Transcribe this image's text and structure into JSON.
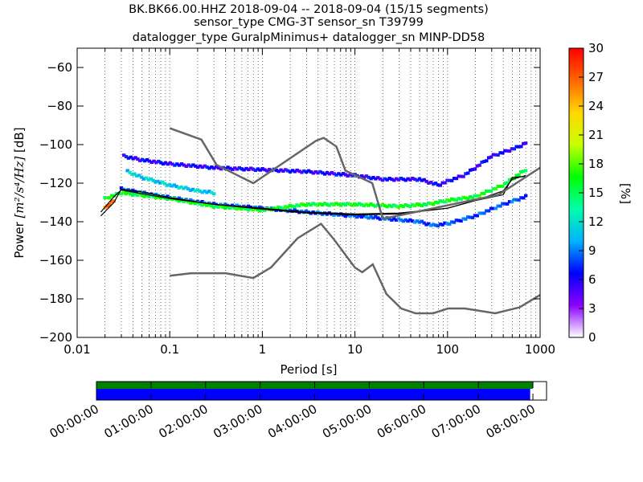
{
  "chart_data": {
    "type": "heatmap",
    "title_lines": [
      "BK.BK66.00.HHZ   2018-09-04 -- 2018-09-04  (15/15 segments)",
      "sensor_type CMG-3T sensor_sn T39799",
      "datalogger_type GuralpMinimus+ datalogger_sn MINP-DD58"
    ],
    "xlabel": "Period [s]",
    "ylabel_prefix": "Power ",
    "ylabel_math": "[m²/s⁴/Hz]",
    "ylabel_suffix": " [dB]",
    "x_scale": "log",
    "xlim": [
      0.01,
      1000
    ],
    "ylim": [
      -200,
      -50
    ],
    "x_ticks": [
      {
        "value": 0.01,
        "label": "0.01"
      },
      {
        "value": 0.1,
        "label": "0.1"
      },
      {
        "value": 1,
        "label": "1"
      },
      {
        "value": 10,
        "label": "10"
      },
      {
        "value": 100,
        "label": "100"
      },
      {
        "value": 1000,
        "label": "1000"
      }
    ],
    "y_ticks": [
      {
        "value": -60,
        "label": "−60"
      },
      {
        "value": -80,
        "label": "−80"
      },
      {
        "value": -100,
        "label": "−100"
      },
      {
        "value": -120,
        "label": "−120"
      },
      {
        "value": -140,
        "label": "−140"
      },
      {
        "value": -160,
        "label": "−160"
      },
      {
        "value": -180,
        "label": "−180"
      },
      {
        "value": -200,
        "label": "−200"
      }
    ],
    "grid": "dotted, period axis",
    "noise_model_high": [
      [
        0.1,
        -91.5
      ],
      [
        0.22,
        -97.4
      ],
      [
        0.32,
        -110.5
      ],
      [
        0.8,
        -120
      ],
      [
        3.8,
        -98
      ],
      [
        4.6,
        -96.5
      ],
      [
        6.3,
        -101
      ],
      [
        7.9,
        -113.5
      ],
      [
        15.4,
        -120
      ],
      [
        20,
        -138.5
      ],
      [
        354.8,
        -126
      ],
      [
        1000,
        -112
      ]
    ],
    "noise_model_low": [
      [
        0.1,
        -168
      ],
      [
        0.17,
        -166.7
      ],
      [
        0.4,
        -166.7
      ],
      [
        0.8,
        -169.2
      ],
      [
        1.24,
        -163.7
      ],
      [
        2.4,
        -148.6
      ],
      [
        4.3,
        -141.1
      ],
      [
        5.9,
        -149
      ],
      [
        10,
        -163.8
      ],
      [
        12,
        -166.2
      ],
      [
        15.6,
        -162.1
      ],
      [
        21.9,
        -177.5
      ],
      [
        31.6,
        -185
      ],
      [
        45,
        -187.5
      ],
      [
        70,
        -187.5
      ],
      [
        101,
        -185
      ],
      [
        154,
        -185
      ],
      [
        328,
        -187.5
      ],
      [
        600,
        -184.4
      ],
      [
        1000,
        -178
      ]
    ],
    "mode_curve": [
      [
        0.018,
        -135
      ],
      [
        0.025,
        -127
      ],
      [
        0.03,
        -123.5
      ],
      [
        0.05,
        -125.5
      ],
      [
        0.1,
        -128
      ],
      [
        0.3,
        -131
      ],
      [
        1,
        -133.5
      ],
      [
        3,
        -135.5
      ],
      [
        10,
        -136.5
      ],
      [
        30,
        -136
      ],
      [
        100,
        -133
      ],
      [
        200,
        -129
      ],
      [
        400,
        -126
      ],
      [
        500,
        -117
      ],
      [
        700,
        -116.5
      ]
    ],
    "mean_curve": [
      [
        0.018,
        -137
      ],
      [
        0.025,
        -130
      ],
      [
        0.03,
        -123
      ],
      [
        0.05,
        -124.5
      ],
      [
        0.1,
        -127.5
      ],
      [
        0.3,
        -131
      ],
      [
        1,
        -133
      ],
      [
        3,
        -135
      ],
      [
        10,
        -136
      ],
      [
        30,
        -135.5
      ],
      [
        100,
        -133
      ],
      [
        200,
        -129
      ],
      [
        400,
        -124
      ],
      [
        500,
        -118
      ],
      [
        700,
        -116
      ]
    ],
    "density_bands": [
      {
        "label": "upper band",
        "color_value": 6,
        "points": [
          [
            0.032,
            -106
          ],
          [
            0.05,
            -108
          ],
          [
            0.1,
            -110
          ],
          [
            0.3,
            -112
          ],
          [
            1,
            -113
          ],
          [
            3,
            -114
          ],
          [
            10,
            -116
          ],
          [
            20,
            -118
          ],
          [
            50,
            -118
          ],
          [
            80,
            -121
          ],
          [
            100,
            -119
          ],
          [
            150,
            -116
          ],
          [
            200,
            -112
          ],
          [
            300,
            -106
          ],
          [
            400,
            -104
          ],
          [
            600,
            -101
          ],
          [
            700,
            -99
          ]
        ]
      },
      {
        "label": "cyan band",
        "color_value": 11,
        "points": [
          [
            0.035,
            -114
          ],
          [
            0.05,
            -117
          ],
          [
            0.1,
            -121
          ],
          [
            0.2,
            -124
          ],
          [
            0.3,
            -125
          ]
        ]
      },
      {
        "label": "low-period cluster",
        "color_value": 8,
        "points": [
          [
            0.03,
            -123
          ],
          [
            0.05,
            -125
          ],
          [
            0.1,
            -127.5
          ],
          [
            0.3,
            -131
          ],
          [
            1,
            -133
          ],
          [
            3,
            -135
          ],
          [
            10,
            -137
          ],
          [
            30,
            -139
          ],
          [
            50,
            -140
          ],
          [
            70,
            -142
          ],
          [
            100,
            -141
          ],
          [
            200,
            -137
          ],
          [
            400,
            -131
          ],
          [
            700,
            -127
          ]
        ]
      },
      {
        "label": "green band",
        "color_value": 16,
        "points": [
          [
            0.02,
            -128
          ],
          [
            0.03,
            -125
          ],
          [
            0.1,
            -128
          ],
          [
            0.3,
            -132
          ],
          [
            1,
            -134
          ],
          [
            3,
            -131
          ],
          [
            10,
            -131
          ],
          [
            30,
            -132
          ],
          [
            60,
            -131
          ],
          [
            100,
            -129
          ],
          [
            200,
            -127
          ],
          [
            400,
            -121
          ],
          [
            700,
            -113
          ]
        ]
      },
      {
        "label": "onset warm cells",
        "color_value": 26,
        "points": [
          [
            0.02,
            -133
          ],
          [
            0.022,
            -131
          ],
          [
            0.025,
            -129
          ]
        ]
      }
    ],
    "colorbar": {
      "label": "[%]",
      "min": 0,
      "max": 30,
      "ticks": [
        {
          "value": 0,
          "label": "0"
        },
        {
          "value": 3,
          "label": "3"
        },
        {
          "value": 6,
          "label": "6"
        },
        {
          "value": 9,
          "label": "9"
        },
        {
          "value": 12,
          "label": "12"
        },
        {
          "value": 15,
          "label": "15"
        },
        {
          "value": 18,
          "label": "18"
        },
        {
          "value": 21,
          "label": "21"
        },
        {
          "value": 24,
          "label": "24"
        },
        {
          "value": 27,
          "label": "27"
        },
        {
          "value": 30,
          "label": "30"
        }
      ],
      "stops": [
        "#ffffff",
        "#8b00ff",
        "#0000ff",
        "#00b3ff",
        "#00ffaa",
        "#00ff00",
        "#c8ff00",
        "#ffd700",
        "#ff6600",
        "#ff0000"
      ]
    },
    "timeline": {
      "ticks": [
        "00:00:00",
        "01:00:00",
        "02:00:00",
        "03:00:00",
        "04:00:00",
        "05:00:00",
        "06:00:00",
        "07:00:00",
        "08:00:00"
      ],
      "range_hours": [
        0,
        8.25
      ],
      "green_coverage_hours": [
        0,
        8.0
      ],
      "blue_coverage_hours": [
        0,
        7.95
      ],
      "colors": {
        "green": "#008000",
        "blue": "#0000ff"
      }
    }
  }
}
